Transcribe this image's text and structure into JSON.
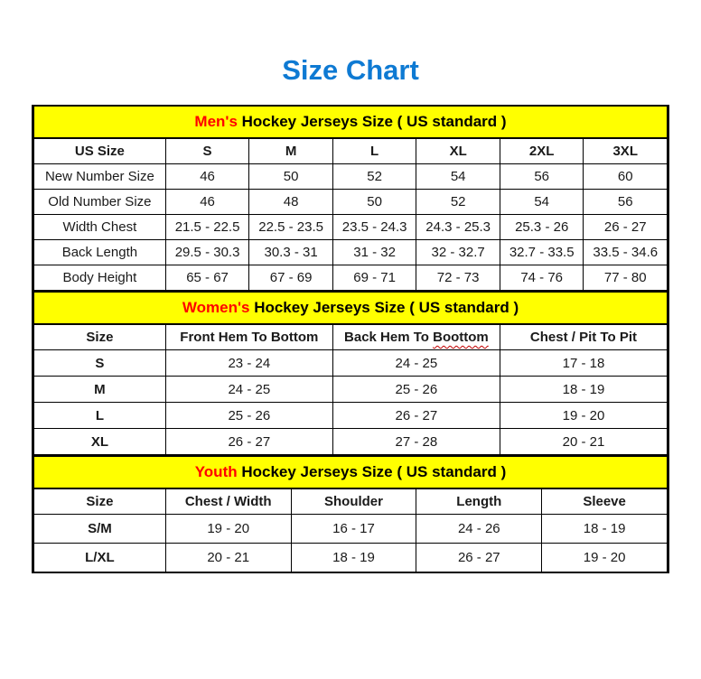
{
  "page": {
    "title": "Size Chart"
  },
  "colors": {
    "title_blue": "#0e7ad3",
    "section_yellow": "#ffff00",
    "accent_red": "#ff0000",
    "border_black": "#000000",
    "squiggle_red": "#c00000"
  },
  "sections": [
    {
      "name": "mens",
      "header": {
        "highlight": "Men's",
        "rest": " Hockey Jerseys Size ( US standard )"
      },
      "columns": [
        "US Size",
        "S",
        "M",
        "L",
        "XL",
        "2XL",
        "3XL"
      ],
      "row_label_bold": false,
      "rows": [
        [
          "New Number Size",
          "46",
          "50",
          "52",
          "54",
          "56",
          "60"
        ],
        [
          "Old Number Size",
          "46",
          "48",
          "50",
          "52",
          "54",
          "56"
        ],
        [
          "Width Chest",
          "21.5 - 22.5",
          "22.5 - 23.5",
          "23.5 - 24.3",
          "24.3 - 25.3",
          "25.3 - 26",
          "26 - 27"
        ],
        [
          "Back Length",
          "29.5 - 30.3",
          "30.3 - 31",
          "31 - 32",
          "32 - 32.7",
          "32.7 - 33.5",
          "33.5 - 34.6"
        ],
        [
          "Body Height",
          "65 - 67",
          "67 - 69",
          "69 - 71",
          "72 - 73",
          "74 - 76",
          "77 - 80"
        ]
      ]
    },
    {
      "name": "womens",
      "header": {
        "highlight": "Women's",
        "rest": " Hockey Jerseys Size ( US standard )"
      },
      "columns": [
        "Size",
        "Front Hem To Bottom",
        "Back Hem To Boottom",
        "Chest / Pit To Pit"
      ],
      "misspelled": {
        "column_index": 2,
        "word": "Boottom"
      },
      "row_label_bold": true,
      "rows": [
        [
          "S",
          "23 - 24",
          "24 - 25",
          "17 - 18"
        ],
        [
          "M",
          "24 - 25",
          "25 - 26",
          "18 - 19"
        ],
        [
          "L",
          "25 - 26",
          "26 - 27",
          "19 - 20"
        ],
        [
          "XL",
          "26 - 27",
          "27 - 28",
          "20 - 21"
        ]
      ]
    },
    {
      "name": "youth",
      "header": {
        "highlight": "Youth",
        "rest": " Hockey Jerseys Size ( US standard )"
      },
      "columns": [
        "Size",
        "Chest / Width",
        "Shoulder",
        "Length",
        "Sleeve"
      ],
      "row_label_bold": true,
      "rows": [
        [
          "S/M",
          "19 - 20",
          "16 - 17",
          "24 - 26",
          "18 - 19"
        ],
        [
          "L/XL",
          "20 - 21",
          "18 - 19",
          "26 - 27",
          "19 - 20"
        ]
      ]
    }
  ]
}
